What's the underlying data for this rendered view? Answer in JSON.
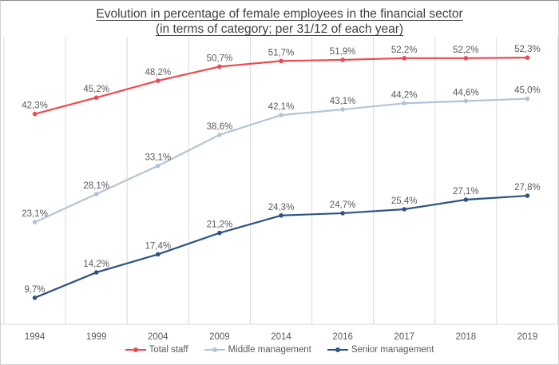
{
  "chart": {
    "title_line1": "Evolution in percentage of female employees in the financial sector",
    "title_line2": "(in terms of category; per 31/12 of each year)"
  },
  "chart_data": {
    "type": "line",
    "title": "Evolution in percentage of female employees in the financial sector (in terms of category; per 31/12 of each year)",
    "xlabel": "",
    "ylabel": "",
    "categories": [
      "1994",
      "1999",
      "2004",
      "2009",
      "2014",
      "2016",
      "2017",
      "2018",
      "2019"
    ],
    "series": [
      {
        "name": "Total staff",
        "color": "#ef484f",
        "values": [
          42.3,
          45.2,
          48.2,
          50.7,
          51.7,
          51.9,
          52.2,
          52.2,
          52.3
        ],
        "labels": [
          "42,3%",
          "45,2%",
          "48,2%",
          "50,7%",
          "51,7%",
          "51,9%",
          "52,2%",
          "52,2%",
          "52,3%"
        ]
      },
      {
        "name": "Middle management",
        "color": "#b4c3d6",
        "values": [
          23.1,
          28.1,
          33.1,
          38.6,
          42.1,
          43.1,
          44.2,
          44.6,
          45.0
        ],
        "labels": [
          "23,1%",
          "28,1%",
          "33,1%",
          "38,6%",
          "42,1%",
          "43,1%",
          "44,2%",
          "44,6%",
          "45,0%"
        ]
      },
      {
        "name": "Senior management",
        "color": "#2e5384",
        "values": [
          9.7,
          14.2,
          17.4,
          21.2,
          24.3,
          24.7,
          25.4,
          27.1,
          27.8
        ],
        "labels": [
          "9,7%",
          "14,2%",
          "17,4%",
          "21,2%",
          "24,3%",
          "24,7%",
          "25,4%",
          "27,1%",
          "27,8%"
        ]
      }
    ],
    "ylim": [
      5,
      55
    ],
    "grid": "vertical-only",
    "legend_position": "bottom",
    "data_labels": true
  },
  "colors": {
    "label_text": "#595959",
    "tick_text": "#595959",
    "title_text": "#404040",
    "gridline": "#d9d9d9",
    "axis_line": "#d9d9d9",
    "background": "#ffffff"
  }
}
